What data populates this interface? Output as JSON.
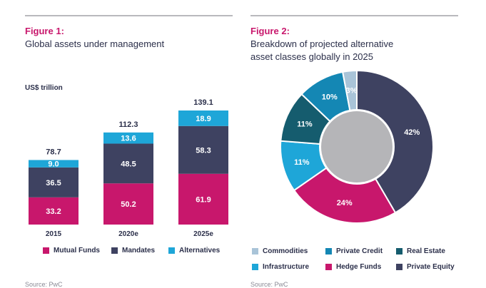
{
  "left": {
    "figure_label": "Figure 1:",
    "title": "Global assets under management",
    "footer": "Source: PwC"
  },
  "right": {
    "figure_label": "Figure 2:",
    "title_line1": "Breakdown of projected alternative",
    "title_line2": "asset classes globally in 2025",
    "footer": "Source: PwC"
  },
  "colors": {
    "mutual_funds": "#c8176c",
    "mandates": "#3e4261",
    "alternatives": "#1ea6d8",
    "commodities": "#a9c4d8",
    "private_credit": "#1487b4",
    "real_estate": "#155c6e",
    "infrastructure": "#1ea6d8",
    "hedge_funds": "#c8176c",
    "private_equity": "#3e4261",
    "center": "#b5b5b8"
  },
  "chart_data": [
    {
      "type": "bar",
      "stacked": true,
      "unit_label": "US$ trillion",
      "categories": [
        "2015",
        "2020e",
        "2025e"
      ],
      "totals": [
        "78.7",
        "112.3",
        "139.1"
      ],
      "series": [
        {
          "name": "Mutual Funds",
          "values": [
            33.2,
            50.2,
            61.9
          ]
        },
        {
          "name": "Mandates",
          "values": [
            36.5,
            48.5,
            58.3
          ]
        },
        {
          "name": "Alternatives",
          "values": [
            9.0,
            13.6,
            18.9
          ]
        }
      ],
      "value_labels": [
        [
          "33.2",
          "36.5",
          "9.0"
        ],
        [
          "50.2",
          "48.5",
          "13.6"
        ],
        [
          "61.9",
          "58.3",
          "18.9"
        ]
      ],
      "ylim": [
        0,
        139.1
      ],
      "legend": "bottom"
    },
    {
      "type": "pie",
      "donut": true,
      "slices": [
        {
          "name": "Private Equity",
          "value": 42,
          "label": "42%"
        },
        {
          "name": "Hedge Funds",
          "value": 24,
          "label": "24%"
        },
        {
          "name": "Infrastructure",
          "value": 11,
          "label": "11%"
        },
        {
          "name": "Real Estate",
          "value": 11,
          "label": "11%"
        },
        {
          "name": "Private Credit",
          "value": 10,
          "label": "10%"
        },
        {
          "name": "Commodities",
          "value": 3,
          "label": "3%"
        }
      ],
      "legend_rows": [
        [
          "Commodities",
          "Private Credit",
          "Real Estate"
        ],
        [
          "Infrastructure",
          "Hedge Funds",
          "Private Equity"
        ]
      ],
      "legend": "bottom"
    }
  ]
}
